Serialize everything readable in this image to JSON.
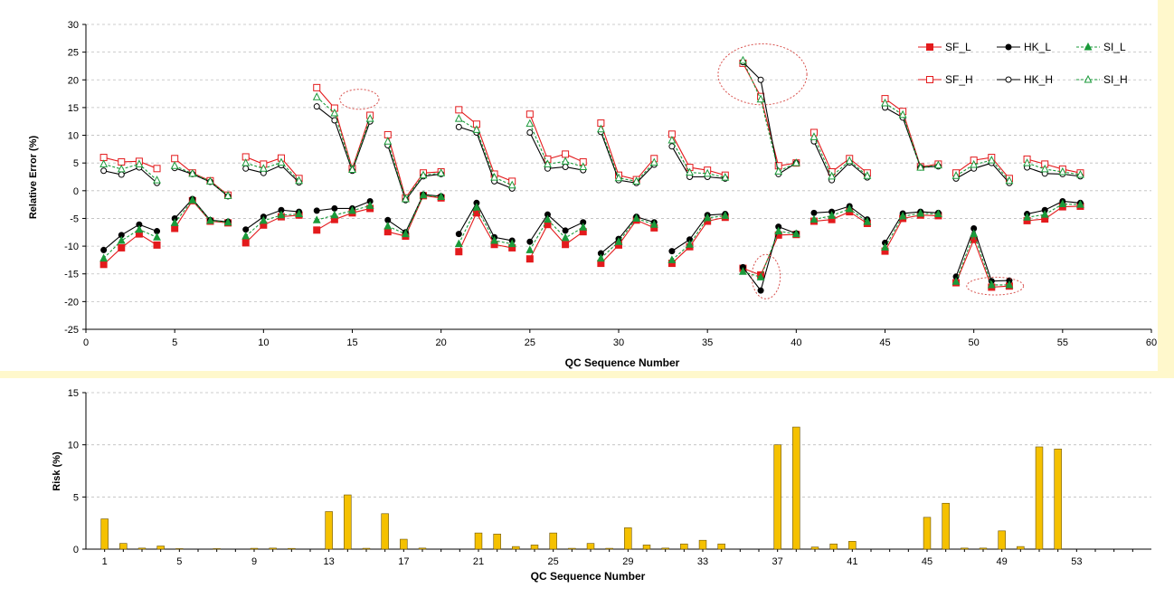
{
  "colors": {
    "sf": "#e31a1c",
    "hk": "#000000",
    "si": "#1a9a3a",
    "bar": "#f5c100",
    "bar_edge": "#6b5200",
    "grid": "#bdbdbd",
    "highlight": "#d9534f",
    "band": "#fff8cc"
  },
  "chart_data": [
    {
      "type": "line",
      "xlabel": "QC Sequence Number",
      "ylabel": "Relative Error (%)",
      "xlim": [
        0,
        60
      ],
      "ylim": [
        -25,
        30
      ],
      "xticks": [
        0,
        5,
        10,
        15,
        20,
        25,
        30,
        35,
        40,
        45,
        50,
        55,
        60
      ],
      "yticks": [
        -25,
        -20,
        -15,
        -10,
        -5,
        0,
        5,
        10,
        15,
        20,
        25,
        30
      ],
      "grid": "horizontal dashed",
      "legend_position": "top-right",
      "segments": [
        [
          1,
          4
        ],
        [
          5,
          8
        ],
        [
          9,
          12
        ],
        [
          13,
          16
        ],
        [
          17,
          20
        ],
        [
          21,
          24
        ],
        [
          25,
          28
        ],
        [
          29,
          32
        ],
        [
          33,
          36
        ],
        [
          37,
          40
        ],
        [
          41,
          44
        ],
        [
          45,
          48
        ],
        [
          49,
          52
        ],
        [
          53,
          56
        ]
      ],
      "highlights": [
        {
          "cx": 15.4,
          "cy": 16.5,
          "rx": 1.1,
          "ry": 1.8
        },
        {
          "cx": 38.1,
          "cy": 21.0,
          "rx": 2.5,
          "ry": 5.5
        },
        {
          "cx": 38.3,
          "cy": -15.5,
          "rx": 0.8,
          "ry": 4.0
        },
        {
          "cx": 51.2,
          "cy": -17.2,
          "rx": 1.6,
          "ry": 1.6
        }
      ],
      "series": [
        {
          "name": "SF_L",
          "key": "sf",
          "marker": "square",
          "filled": true,
          "dashed": false,
          "values": [
            -13.3,
            -10.3,
            -7.8,
            -9.8,
            -6.8,
            -1.8,
            -5.5,
            -5.8,
            -9.4,
            -6.2,
            -4.7,
            -4.4,
            -7.1,
            -5.2,
            -4.0,
            -3.2,
            -7.4,
            -8.2,
            -0.9,
            -1.3,
            -11.0,
            -4.0,
            -9.7,
            -10.3,
            -12.3,
            -6.1,
            -9.7,
            -7.4,
            -13.1,
            -9.8,
            -5.3,
            -6.7,
            -13.1,
            -10.1,
            -5.5,
            -4.8,
            -14.0,
            -15.2,
            -8.0,
            -7.9,
            -5.5,
            -5.2,
            -3.8,
            -5.9,
            -10.9,
            -5.0,
            -4.4,
            -4.5,
            -16.6,
            -8.8,
            -17.4,
            -17.2,
            -5.4,
            -5.1,
            -2.9,
            -2.8
          ]
        },
        {
          "name": "HK_L",
          "key": "hk",
          "marker": "circle",
          "filled": true,
          "dashed": false,
          "values": [
            -10.7,
            -8.0,
            -6.1,
            -7.3,
            -5.0,
            -1.5,
            -5.3,
            -5.6,
            -7.0,
            -4.7,
            -3.5,
            -3.8,
            -3.6,
            -3.2,
            -3.2,
            -1.9,
            -5.3,
            -7.5,
            -0.7,
            -1.0,
            -7.8,
            -2.2,
            -8.4,
            -9.0,
            -9.2,
            -4.3,
            -7.2,
            -5.7,
            -11.3,
            -8.7,
            -4.7,
            -5.7,
            -10.9,
            -8.8,
            -4.4,
            -4.2,
            -13.8,
            -18.0,
            -6.5,
            -7.7,
            -4.0,
            -3.8,
            -2.8,
            -5.2,
            -9.4,
            -4.1,
            -3.8,
            -4.0,
            -15.5,
            -6.8,
            -16.3,
            -16.2,
            -4.2,
            -3.5,
            -1.9,
            -2.2
          ]
        },
        {
          "name": "SI_L",
          "key": "si",
          "marker": "triangle",
          "filled": true,
          "dashed": true,
          "values": [
            -12.2,
            -9.0,
            -7.0,
            -8.4,
            -5.8,
            -1.7,
            -5.4,
            -5.7,
            -8.2,
            -5.4,
            -4.4,
            -4.2,
            -5.3,
            -4.4,
            -3.6,
            -2.7,
            -6.4,
            -7.8,
            -0.8,
            -1.1,
            -9.6,
            -3.0,
            -9.0,
            -9.6,
            -10.7,
            -5.2,
            -8.5,
            -6.6,
            -12.2,
            -9.2,
            -5.0,
            -6.1,
            -12.5,
            -9.7,
            -4.9,
            -4.5,
            -14.6,
            -15.6,
            -7.3,
            -7.8,
            -5.2,
            -4.5,
            -3.3,
            -5.6,
            -10.2,
            -4.6,
            -4.1,
            -4.2,
            -16.4,
            -7.8,
            -17.0,
            -17.0,
            -4.8,
            -4.3,
            -2.4,
            -2.5
          ]
        },
        {
          "name": "SF_H",
          "key": "sf",
          "marker": "square",
          "filled": false,
          "dashed": false,
          "values": [
            6.0,
            5.2,
            5.3,
            4.0,
            5.8,
            3.2,
            1.8,
            -0.8,
            6.1,
            4.8,
            5.9,
            2.2,
            18.6,
            14.9,
            4.0,
            13.6,
            10.1,
            -1.3,
            3.2,
            3.4,
            14.6,
            12.0,
            3.0,
            1.7,
            13.8,
            5.7,
            6.6,
            5.2,
            12.2,
            2.8,
            2.0,
            5.8,
            10.2,
            4.2,
            3.7,
            2.8,
            23.0,
            17.0,
            4.5,
            5.0,
            10.5,
            3.4,
            5.8,
            3.2,
            16.6,
            14.3,
            4.3,
            4.8,
            3.2,
            5.5,
            6.0,
            2.2,
            5.7,
            4.8,
            3.9,
            3.2
          ]
        },
        {
          "name": "HK_H",
          "key": "hk",
          "marker": "circle",
          "filled": false,
          "dashed": false,
          "values": [
            3.6,
            2.9,
            4.2,
            1.4,
            4.1,
            3.0,
            1.6,
            -1.0,
            4.0,
            3.2,
            4.6,
            1.5,
            15.2,
            12.7,
            3.6,
            12.5,
            8.2,
            -1.7,
            2.6,
            3.0,
            11.5,
            10.5,
            1.7,
            0.4,
            10.5,
            4.0,
            4.3,
            3.7,
            10.6,
            1.9,
            1.4,
            4.7,
            8.0,
            2.5,
            2.5,
            2.2,
            23.2,
            20.0,
            3.0,
            5.0,
            8.9,
            1.9,
            5.1,
            2.4,
            15.0,
            13.2,
            4.2,
            4.4,
            2.2,
            4.0,
            5.0,
            1.4,
            4.2,
            3.1,
            3.0,
            2.6
          ]
        },
        {
          "name": "SI_H",
          "key": "si",
          "marker": "triangle",
          "filled": false,
          "dashed": true,
          "values": [
            4.8,
            3.9,
            4.8,
            1.9,
            4.5,
            3.1,
            1.7,
            -0.9,
            5.0,
            4.0,
            5.1,
            1.8,
            16.9,
            14.0,
            3.8,
            13.0,
            8.9,
            -1.5,
            2.8,
            3.2,
            13.0,
            11.0,
            2.4,
            1.0,
            12.1,
            4.8,
            5.3,
            4.3,
            11.1,
            2.3,
            1.7,
            5.1,
            9.1,
            3.3,
            3.1,
            2.4,
            23.5,
            16.5,
            3.5,
            5.0,
            9.7,
            2.6,
            5.4,
            2.7,
            15.8,
            13.7,
            4.2,
            4.6,
            2.7,
            4.7,
            5.5,
            1.8,
            5.0,
            3.9,
            3.4,
            2.9
          ]
        }
      ]
    },
    {
      "type": "bar",
      "xlabel": "QC Sequence Number",
      "ylabel": "Risk (%)",
      "xlim": [
        0,
        57
      ],
      "ylim": [
        0,
        15
      ],
      "yticks": [
        0,
        5,
        10,
        15
      ],
      "xticks": [
        1,
        5,
        9,
        13,
        17,
        21,
        25,
        29,
        33,
        37,
        41,
        45,
        49,
        53
      ],
      "grid": "horizontal dashed",
      "categories": [
        1,
        2,
        3,
        4,
        5,
        6,
        7,
        8,
        9,
        10,
        11,
        12,
        13,
        14,
        15,
        16,
        17,
        18,
        19,
        20,
        21,
        22,
        23,
        24,
        25,
        26,
        27,
        28,
        29,
        30,
        31,
        32,
        33,
        34,
        35,
        36,
        37,
        38,
        39,
        40,
        41,
        42,
        43,
        44,
        45,
        46,
        47,
        48,
        49,
        50,
        51,
        52,
        53,
        54,
        55,
        56
      ],
      "values": [
        2.9,
        0.55,
        0.1,
        0.3,
        0.05,
        0.0,
        0.05,
        0.0,
        0.08,
        0.1,
        0.07,
        0.0,
        3.6,
        5.2,
        0.08,
        3.4,
        0.95,
        0.1,
        0.0,
        0.0,
        1.55,
        1.45,
        0.25,
        0.4,
        1.55,
        0.08,
        0.55,
        0.08,
        2.05,
        0.4,
        0.1,
        0.5,
        0.85,
        0.5,
        0.0,
        0.0,
        10.0,
        11.7,
        0.2,
        0.5,
        0.75,
        0.0,
        0.0,
        0.0,
        3.05,
        4.4,
        0.1,
        0.1,
        1.75,
        0.25,
        9.8,
        9.6,
        0.0,
        0.0,
        0.0,
        0.0
      ]
    }
  ]
}
